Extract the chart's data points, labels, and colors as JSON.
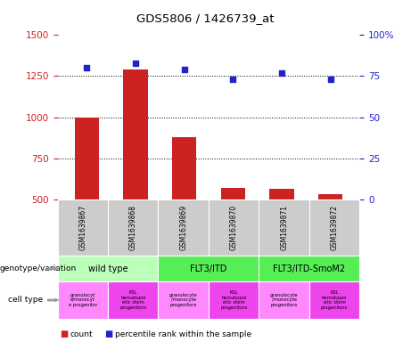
{
  "title": "GDS5806 / 1426739_at",
  "samples": [
    "GSM1639867",
    "GSM1639868",
    "GSM1639869",
    "GSM1639870",
    "GSM1639871",
    "GSM1639872"
  ],
  "counts": [
    1000,
    1290,
    880,
    570,
    565,
    530
  ],
  "percentile_ranks": [
    80,
    83,
    79,
    73,
    77,
    73
  ],
  "ylim_left": [
    500,
    1500
  ],
  "ylim_right": [
    0,
    100
  ],
  "yticks_left": [
    500,
    750,
    1000,
    1250,
    1500
  ],
  "yticks_right": [
    0,
    25,
    50,
    75,
    100
  ],
  "bar_color": "#cc2222",
  "dot_color": "#2222cc",
  "sample_bg_color": "#cccccc",
  "background_color": "#ffffff",
  "geno_groups": [
    {
      "label": "wild type",
      "cols": [
        0,
        1
      ],
      "color": "#bbffbb"
    },
    {
      "label": "FLT3/ITD",
      "cols": [
        2,
        3
      ],
      "color": "#55ee55"
    },
    {
      "label": "FLT3/ITD-SmoM2",
      "cols": [
        4,
        5
      ],
      "color": "#55ee55"
    }
  ],
  "cell_colors": [
    "#ff88ff",
    "#ee44ee",
    "#ff88ff",
    "#ee44ee",
    "#ff88ff",
    "#ee44ee"
  ],
  "cell_labels": [
    "granulocyt\ne/monocyt\ne progenitor",
    "KSL\nhematopoi\netic stem\nprogenitors",
    "granulocyte\n/monocyte\nprogenitors",
    "KSL\nhematopoi\netic stem\nprogenitors",
    "granulocyte\n/monocyte\nprogenitors",
    "KSL\nhematopoi\netic stem\nprogenitors"
  ]
}
